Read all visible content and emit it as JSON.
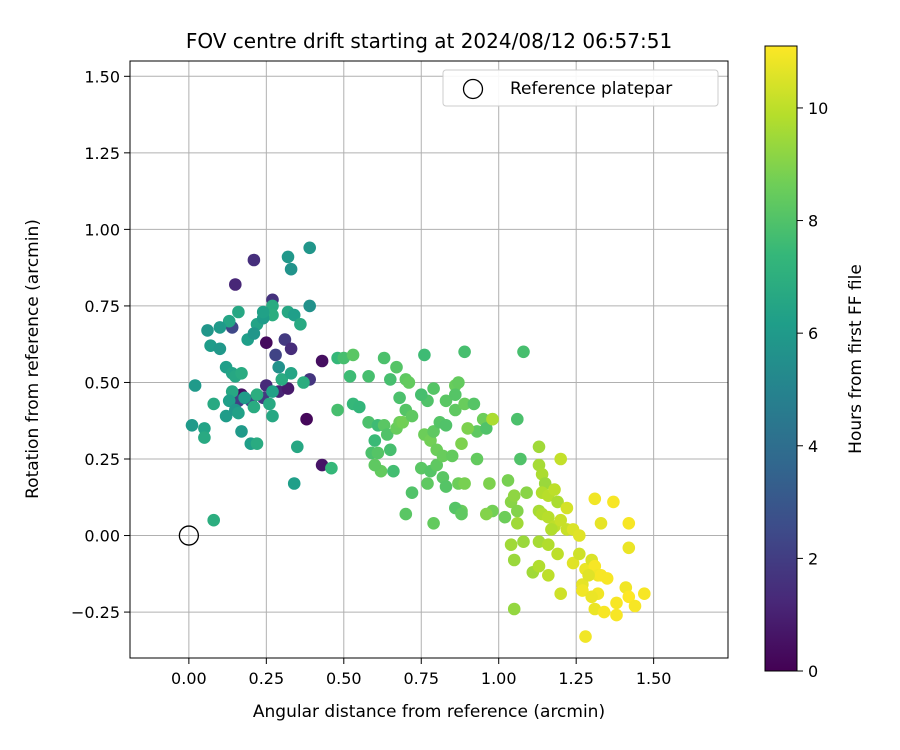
{
  "chart_data": {
    "type": "scatter",
    "title": "FOV centre drift starting at 2024/08/12 06:57:51",
    "xlabel": "Angular distance from reference (arcmin)",
    "ylabel": "Rotation from reference (arcmin)",
    "xlim": [
      -0.19,
      1.74
    ],
    "ylim": [
      -0.4,
      1.55
    ],
    "xticks": [
      0.0,
      0.25,
      0.5,
      0.75,
      1.0,
      1.25,
      1.5
    ],
    "yticks": [
      -0.25,
      0.0,
      0.25,
      0.5,
      0.75,
      1.0,
      1.25,
      1.5
    ],
    "xtick_labels": [
      "0.00",
      "0.25",
      "0.50",
      "0.75",
      "1.00",
      "1.25",
      "1.50"
    ],
    "ytick_labels": [
      "−0.25",
      "0.00",
      "0.25",
      "0.50",
      "0.75",
      "1.00",
      "1.25",
      "1.50"
    ],
    "grid": true,
    "legend": {
      "position": "top-right",
      "label": "Reference platepar",
      "marker": "open-circle"
    },
    "reference_point": {
      "x": 0.0,
      "y": 0.0
    },
    "colorbar": {
      "label": "Hours from first FF file",
      "colormap": "viridis",
      "range": [
        0,
        11.1
      ],
      "ticks": [
        0,
        2,
        4,
        6,
        8,
        10
      ],
      "tick_labels": [
        "0",
        "2",
        "4",
        "6",
        "8",
        "10"
      ]
    },
    "points": [
      [
        0.15,
        0.82,
        1.2
      ],
      [
        0.21,
        0.9,
        1.5
      ],
      [
        0.17,
        0.46,
        0.5
      ],
      [
        0.25,
        0.49,
        1.3
      ],
      [
        0.27,
        0.77,
        1.6
      ],
      [
        0.29,
        0.47,
        1.1
      ],
      [
        0.31,
        0.64,
        1.9
      ],
      [
        0.33,
        0.61,
        1.4
      ],
      [
        0.25,
        0.63,
        0.3
      ],
      [
        0.39,
        0.51,
        1.7
      ],
      [
        0.43,
        0.57,
        0.4
      ],
      [
        0.43,
        0.23,
        0.6
      ],
      [
        0.38,
        0.38,
        0.2
      ],
      [
        0.16,
        0.44,
        2.1
      ],
      [
        0.28,
        0.59,
        2.2
      ],
      [
        0.32,
        0.48,
        0.8
      ],
      [
        0.24,
        0.45,
        1.9
      ],
      [
        0.2,
        0.44,
        2.5
      ],
      [
        0.14,
        0.68,
        2.4
      ],
      [
        0.39,
        0.94,
        5.8
      ],
      [
        0.32,
        0.91,
        5.9
      ],
      [
        0.33,
        0.87,
        5.7
      ],
      [
        0.39,
        0.75,
        5.6
      ],
      [
        0.27,
        0.75,
        6.8
      ],
      [
        0.32,
        0.73,
        6.6
      ],
      [
        0.34,
        0.72,
        6.2
      ],
      [
        0.36,
        0.69,
        6.7
      ],
      [
        0.27,
        0.72,
        6.9
      ],
      [
        0.22,
        0.69,
        6.4
      ],
      [
        0.16,
        0.73,
        6.6
      ],
      [
        0.13,
        0.7,
        6.5
      ],
      [
        0.24,
        0.71,
        6.1
      ],
      [
        0.19,
        0.64,
        6.2
      ],
      [
        0.21,
        0.66,
        5.8
      ],
      [
        0.06,
        0.67,
        5.8
      ],
      [
        0.1,
        0.68,
        6.0
      ],
      [
        0.07,
        0.62,
        6.1
      ],
      [
        0.1,
        0.61,
        5.9
      ],
      [
        0.12,
        0.55,
        6.2
      ],
      [
        0.14,
        0.53,
        6.4
      ],
      [
        0.15,
        0.52,
        6.6
      ],
      [
        0.17,
        0.53,
        6.8
      ],
      [
        0.02,
        0.49,
        6.0
      ],
      [
        0.14,
        0.47,
        6.6
      ],
      [
        0.13,
        0.44,
        6.2
      ],
      [
        0.18,
        0.45,
        6.1
      ],
      [
        0.21,
        0.42,
        6.8
      ],
      [
        0.22,
        0.46,
        6.9
      ],
      [
        0.26,
        0.43,
        6.7
      ],
      [
        0.27,
        0.47,
        6.3
      ],
      [
        0.3,
        0.51,
        6.8
      ],
      [
        0.33,
        0.53,
        6.5
      ],
      [
        0.37,
        0.5,
        6.9
      ],
      [
        0.08,
        0.43,
        6.7
      ],
      [
        0.12,
        0.39,
        6.1
      ],
      [
        0.15,
        0.41,
        5.9
      ],
      [
        0.16,
        0.4,
        6.3
      ],
      [
        0.27,
        0.39,
        6.6
      ],
      [
        0.01,
        0.36,
        6.0
      ],
      [
        0.05,
        0.35,
        6.4
      ],
      [
        0.05,
        0.32,
        6.7
      ],
      [
        0.17,
        0.34,
        6.0
      ],
      [
        0.2,
        0.3,
        6.2
      ],
      [
        0.22,
        0.3,
        6.8
      ],
      [
        0.35,
        0.29,
        6.6
      ],
      [
        0.34,
        0.17,
        6.2
      ],
      [
        0.08,
        0.05,
        6.9
      ],
      [
        0.29,
        0.55,
        5.6
      ],
      [
        0.24,
        0.73,
        6.3
      ],
      [
        0.48,
        0.58,
        7.4
      ],
      [
        0.5,
        0.58,
        7.8
      ],
      [
        0.53,
        0.59,
        8.2
      ],
      [
        0.52,
        0.52,
        7.6
      ],
      [
        0.58,
        0.52,
        7.8
      ],
      [
        0.53,
        0.43,
        7.4
      ],
      [
        0.55,
        0.42,
        7.3
      ],
      [
        0.48,
        0.41,
        7.8
      ],
      [
        0.46,
        0.22,
        7.4
      ],
      [
        0.63,
        0.58,
        7.9
      ],
      [
        0.67,
        0.55,
        8.1
      ],
      [
        0.65,
        0.51,
        7.8
      ],
      [
        0.7,
        0.51,
        8.3
      ],
      [
        0.71,
        0.5,
        8.4
      ],
      [
        0.58,
        0.37,
        7.9
      ],
      [
        0.61,
        0.36,
        7.6
      ],
      [
        0.6,
        0.31,
        7.5
      ],
      [
        0.59,
        0.27,
        7.9
      ],
      [
        0.61,
        0.27,
        8.1
      ],
      [
        0.63,
        0.36,
        8.2
      ],
      [
        0.64,
        0.33,
        8.0
      ],
      [
        0.65,
        0.28,
        7.8
      ],
      [
        0.62,
        0.21,
        8.4
      ],
      [
        0.6,
        0.23,
        8.3
      ],
      [
        0.67,
        0.35,
        8.5
      ],
      [
        0.68,
        0.37,
        8.6
      ],
      [
        0.7,
        0.41,
        8.1
      ],
      [
        0.68,
        0.45,
        7.9
      ],
      [
        0.66,
        0.21,
        7.7
      ],
      [
        0.69,
        0.37,
        8.7
      ],
      [
        0.72,
        0.39,
        8.3
      ],
      [
        0.76,
        0.59,
        7.6
      ],
      [
        0.77,
        0.44,
        8.0
      ],
      [
        0.75,
        0.46,
        7.8
      ],
      [
        0.79,
        0.48,
        8.1
      ],
      [
        0.83,
        0.44,
        8.2
      ],
      [
        0.86,
        0.49,
        8.5
      ],
      [
        0.87,
        0.5,
        8.4
      ],
      [
        0.89,
        0.6,
        7.8
      ],
      [
        0.86,
        0.41,
        8.3
      ],
      [
        0.86,
        0.46,
        8.1
      ],
      [
        0.89,
        0.43,
        8.5
      ],
      [
        0.76,
        0.33,
        8.6
      ],
      [
        0.78,
        0.31,
        8.7
      ],
      [
        0.79,
        0.34,
        8.3
      ],
      [
        0.8,
        0.28,
        8.6
      ],
      [
        0.81,
        0.37,
        8.1
      ],
      [
        0.83,
        0.36,
        8.0
      ],
      [
        0.75,
        0.22,
        8.2
      ],
      [
        0.78,
        0.21,
        8.1
      ],
      [
        0.8,
        0.23,
        8.3
      ],
      [
        0.82,
        0.26,
        8.5
      ],
      [
        0.85,
        0.26,
        8.4
      ],
      [
        0.82,
        0.19,
        8.2
      ],
      [
        0.83,
        0.16,
        8.1
      ],
      [
        0.77,
        0.17,
        8.3
      ],
      [
        0.72,
        0.14,
        8.0
      ],
      [
        0.7,
        0.07,
        8.2
      ],
      [
        0.79,
        0.04,
        8.4
      ],
      [
        0.87,
        0.17,
        8.6
      ],
      [
        0.88,
        0.08,
        8.5
      ],
      [
        0.86,
        0.09,
        8.1
      ],
      [
        0.88,
        0.07,
        8.3
      ],
      [
        0.89,
        0.17,
        8.8
      ],
      [
        0.93,
        0.34,
        8.3
      ],
      [
        0.92,
        0.43,
        8.1
      ],
      [
        0.95,
        0.38,
        8.6
      ],
      [
        0.98,
        0.38,
        8.8
      ],
      [
        0.96,
        0.35,
        8.0
      ],
      [
        0.93,
        0.25,
        8.4
      ],
      [
        0.97,
        0.17,
        8.9
      ],
      [
        0.98,
        0.08,
        8.7
      ],
      [
        1.03,
        0.18,
        8.8
      ],
      [
        1.06,
        0.38,
        7.9
      ],
      [
        1.08,
        0.6,
        7.8
      ],
      [
        1.07,
        0.25,
        8.0
      ],
      [
        1.02,
        0.06,
        8.6
      ],
      [
        0.96,
        0.07,
        9.0
      ],
      [
        0.98,
        0.38,
        9.7
      ],
      [
        0.9,
        0.35,
        8.9
      ],
      [
        0.88,
        0.3,
        8.9
      ],
      [
        1.04,
        0.11,
        9.1
      ],
      [
        1.05,
        0.13,
        9.2
      ],
      [
        1.06,
        0.08,
        9.0
      ],
      [
        1.09,
        0.14,
        9.1
      ],
      [
        1.06,
        0.04,
        9.5
      ],
      [
        1.04,
        -0.03,
        9.5
      ],
      [
        1.08,
        -0.02,
        9.4
      ],
      [
        1.11,
        -0.12,
        9.5
      ],
      [
        1.05,
        -0.08,
        9.4
      ],
      [
        1.05,
        -0.24,
        9.3
      ],
      [
        1.13,
        0.29,
        9.5
      ],
      [
        1.13,
        0.23,
        9.6
      ],
      [
        1.14,
        0.2,
        9.7
      ],
      [
        1.15,
        0.17,
        9.4
      ],
      [
        1.14,
        0.14,
        9.8
      ],
      [
        1.16,
        0.13,
        9.9
      ],
      [
        1.18,
        0.15,
        10.0
      ],
      [
        1.19,
        0.11,
        9.7
      ],
      [
        1.2,
        0.25,
        10.1
      ],
      [
        1.13,
        0.08,
        9.6
      ],
      [
        1.14,
        0.07,
        9.8
      ],
      [
        1.16,
        0.06,
        9.9
      ],
      [
        1.18,
        0.03,
        10.0
      ],
      [
        1.2,
        0.05,
        10.2
      ],
      [
        1.17,
        0.02,
        9.8
      ],
      [
        1.13,
        -0.02,
        9.6
      ],
      [
        1.16,
        -0.03,
        9.8
      ],
      [
        1.19,
        -0.06,
        10.0
      ],
      [
        1.13,
        -0.1,
        9.8
      ],
      [
        1.16,
        -0.13,
        10.0
      ],
      [
        1.2,
        -0.19,
        10.3
      ],
      [
        1.22,
        0.09,
        10.4
      ],
      [
        1.22,
        0.02,
        10.2
      ],
      [
        1.24,
        0.02,
        10.5
      ],
      [
        1.26,
        0.0,
        10.6
      ],
      [
        1.24,
        -0.09,
        10.6
      ],
      [
        1.26,
        -0.06,
        10.3
      ],
      [
        1.28,
        -0.11,
        10.8
      ],
      [
        1.27,
        -0.16,
        10.7
      ],
      [
        1.3,
        -0.08,
        10.5
      ],
      [
        1.31,
        0.12,
        10.9
      ],
      [
        1.33,
        0.04,
        10.7
      ],
      [
        1.37,
        0.11,
        11.0
      ],
      [
        1.42,
        0.04,
        11.0
      ],
      [
        1.31,
        -0.1,
        11.0
      ],
      [
        1.32,
        -0.13,
        10.9
      ],
      [
        1.33,
        -0.13,
        11.0
      ],
      [
        1.35,
        -0.14,
        11.0
      ],
      [
        1.32,
        -0.19,
        10.9
      ],
      [
        1.31,
        -0.24,
        10.8
      ],
      [
        1.34,
        -0.25,
        11.0
      ],
      [
        1.28,
        -0.33,
        10.9
      ],
      [
        1.38,
        -0.22,
        11.0
      ],
      [
        1.38,
        -0.26,
        11.0
      ],
      [
        1.41,
        -0.17,
        10.9
      ],
      [
        1.42,
        -0.2,
        11.1
      ],
      [
        1.44,
        -0.23,
        11.0
      ],
      [
        1.47,
        -0.19,
        11.0
      ],
      [
        1.42,
        -0.04,
        10.8
      ],
      [
        1.29,
        -0.13,
        10.6
      ],
      [
        1.27,
        -0.18,
        10.9
      ],
      [
        1.3,
        -0.2,
        10.8
      ]
    ]
  }
}
